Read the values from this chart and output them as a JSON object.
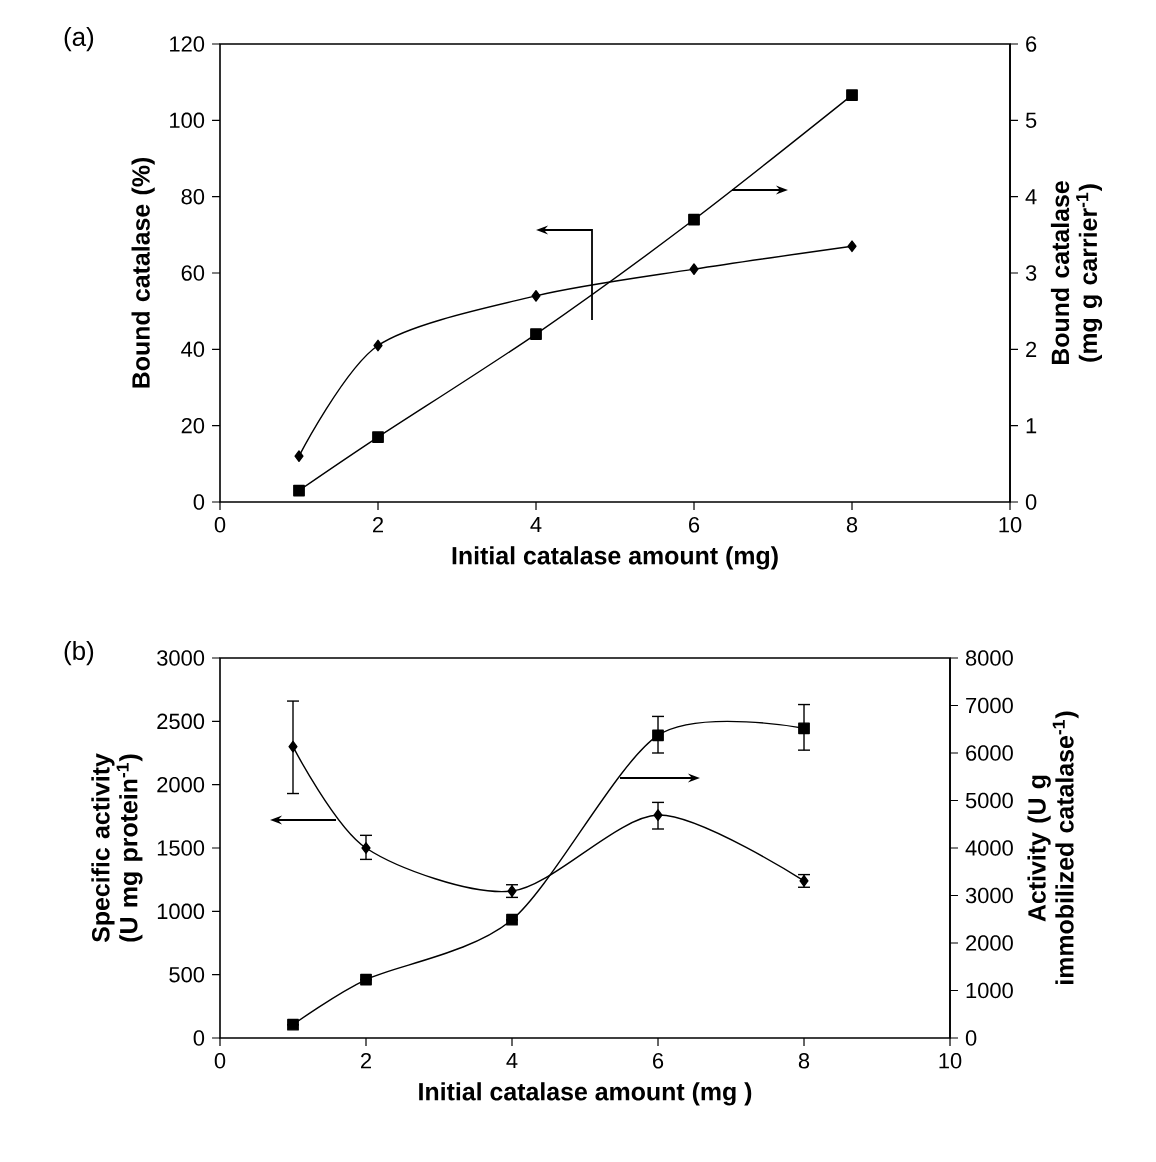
{
  "chart_data": [
    {
      "type": "line",
      "annotations": [
        "(a)"
      ],
      "xlabel": "Initial catalase amount (mg)",
      "ylabel": "Bound catalase (%)",
      "y2label": "Bound catalase (mg g carrier$^{-1}$)",
      "x": [
        1,
        2,
        4,
        6,
        8
      ],
      "xlim": [
        0,
        10
      ],
      "xticks": [
        0,
        2,
        4,
        6,
        8,
        10
      ],
      "ylim": [
        0,
        120
      ],
      "yticks": [
        0,
        20,
        40,
        60,
        80,
        100,
        120
      ],
      "y2lim": [
        0,
        6
      ],
      "y2ticks": [
        0,
        1,
        2,
        3,
        4,
        5,
        6
      ],
      "marker": "diamond",
      "line_style": "solid",
      "series": [
        {
          "color": "#000000",
          "values": [
            12,
            41,
            54,
            61,
            67
          ]
        },
        {
          "color": "#000000",
          "axis": "y2",
          "marker": "square",
          "values": [
            0.15,
            0.85,
            2.2,
            3.7,
            5.33
          ]
        }
      ]
    },
    {
      "type": "line",
      "annotations": [
        "(b)"
      ],
      "xlabel": "Initial catalase amount (mg )",
      "ylabel": "Specific activity (U mg protein$^{-1}$)",
      "y2label": "Activity (U g immobilized catalase$^{-1}$)",
      "x": [
        1,
        2,
        4,
        6,
        8
      ],
      "xlim": [
        0,
        10
      ],
      "xticks": [
        0,
        2,
        4,
        6,
        8,
        10
      ],
      "ylim": [
        0,
        3000
      ],
      "yticks": [
        0,
        500,
        1000,
        1500,
        2000,
        2500,
        3000
      ],
      "y2lim": [
        0,
        8000
      ],
      "y2ticks": [
        0,
        1000,
        2000,
        3000,
        4000,
        5000,
        6000,
        7000,
        8000
      ],
      "marker": "diamond",
      "line_style": "solid",
      "series": [
        {
          "color": "#000000",
          "values": [
            2300,
            1500,
            1160,
            1760,
            1240
          ],
          "errors": [
            [
              1930,
              2660
            ],
            [
              1410,
              1600
            ],
            [
              1110,
              1210
            ],
            [
              1650,
              1860
            ],
            [
              1190,
              1290
            ]
          ]
        },
        {
          "color": "#000000",
          "axis": "y2",
          "marker": "square",
          "values": [
            280,
            1230,
            2490,
            6370,
            6520
          ],
          "errors": [
            null,
            null,
            null,
            [
              6000,
              6770
            ],
            [
              6060,
              7020
            ]
          ]
        }
      ]
    }
  ]
}
